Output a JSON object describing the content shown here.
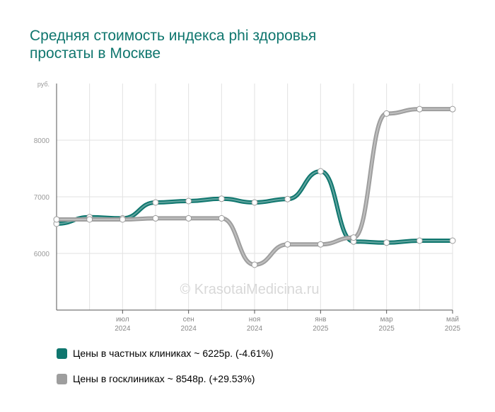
{
  "page": {
    "title_line1": "Средняя стоимость индекса phi здоровья",
    "title_line2": "простаты в Москве",
    "watermark": "© KrasotaiMedicina.ru"
  },
  "chart_data": {
    "type": "line",
    "y_unit": "руб.",
    "ylim": [
      5000,
      9000
    ],
    "yticks": [
      6000,
      7000,
      8000
    ],
    "grid": true,
    "x": [
      "2024-05",
      "2024-06",
      "2024-07",
      "2024-08",
      "2024-09",
      "2024-10",
      "2024-11",
      "2024-12",
      "2025-01",
      "2025-02",
      "2025-03",
      "2025-04",
      "2025-05"
    ],
    "x_tick_labels": [
      {
        "x": "2024-07",
        "month": "июл",
        "year": "2024"
      },
      {
        "x": "2024-09",
        "month": "сен",
        "year": "2024"
      },
      {
        "x": "2024-11",
        "month": "ноя",
        "year": "2024"
      },
      {
        "x": "2025-01",
        "month": "янв",
        "year": "2025"
      },
      {
        "x": "2025-03",
        "month": "мар",
        "year": "2025"
      },
      {
        "x": "2025-05",
        "month": "май",
        "year": "2025"
      }
    ],
    "series": [
      {
        "name": "Цены в частных клиниках ~ 6225р. (-4.61%)",
        "color": "#0f766e",
        "values": [
          6525,
          6640,
          6620,
          6900,
          6925,
          6965,
          6900,
          6960,
          7450,
          6210,
          6190,
          6225,
          6225
        ]
      },
      {
        "name": "Цены в госклиниках ~ 8548р. (+29.53%)",
        "color": "#9e9e9e",
        "values": [
          6600,
          6600,
          6600,
          6620,
          6620,
          6620,
          5800,
          6160,
          6160,
          6280,
          8470,
          8548,
          8548
        ]
      }
    ]
  }
}
